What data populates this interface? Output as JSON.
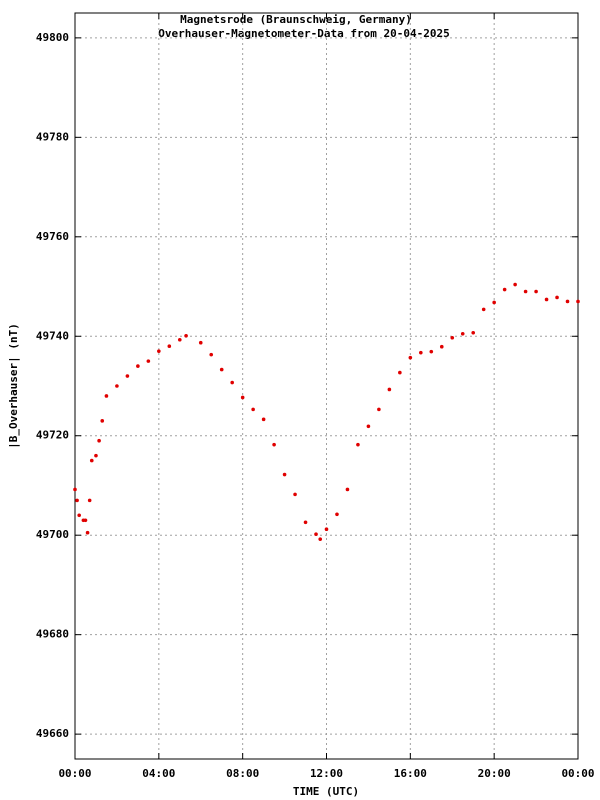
{
  "chart_data": {
    "type": "scatter",
    "title": "Magnetsrode (Braunschweig, Germany)",
    "subtitle": "Overhauser-Magnetometer-Data from 20-04-2025",
    "x_label": "TIME (UTC)",
    "y_label": "|B_Overhauser| (nT)",
    "xlim": [
      0,
      24
    ],
    "xticks": [
      {
        "value": 0,
        "label": "00:00"
      },
      {
        "value": 4,
        "label": "04:00"
      },
      {
        "value": 8,
        "label": "08:00"
      },
      {
        "value": 12,
        "label": "12:00"
      },
      {
        "value": 16,
        "label": "16:00"
      },
      {
        "value": 20,
        "label": "20:00"
      },
      {
        "value": 24,
        "label": "00:00"
      }
    ],
    "ylim": [
      49655,
      49805
    ],
    "yticks": [
      49660,
      49680,
      49700,
      49720,
      49740,
      49760,
      49780,
      49800
    ],
    "grid": true,
    "series": [
      {
        "color": "#e00000",
        "x": [
          0.0,
          0.1,
          0.2,
          0.4,
          0.5,
          0.6,
          0.7,
          0.8,
          1.0,
          1.15,
          1.3,
          1.5,
          2,
          2.5,
          3,
          3.5,
          4,
          4.5,
          5,
          5.3,
          6,
          6.5,
          7,
          7.5,
          8,
          8.5,
          9,
          9.5,
          10,
          10.5,
          11,
          11.5,
          11.7,
          12,
          12.5,
          13,
          13.5,
          14,
          14.5,
          15,
          15.5,
          16,
          16.5,
          17,
          17.5,
          18,
          18.5,
          19,
          19.5,
          20,
          20.5,
          21,
          21.5,
          22,
          22.5,
          23,
          23.5,
          24
        ],
        "values": [
          49709.2,
          49707,
          49704,
          49703,
          49703,
          49700.5,
          49707,
          49715,
          49716,
          49719,
          49723,
          49728,
          49730,
          49732,
          49734,
          49735,
          49737,
          49738,
          49739.3,
          49740.1,
          49738.7,
          49736.3,
          49733.3,
          49730.7,
          49727.7,
          49725.3,
          49723.3,
          49718.2,
          49712.2,
          49708.2,
          49702.6,
          49700.2,
          49699.2,
          49701.2,
          49704.2,
          49709.2,
          49718.2,
          49721.9,
          49725.3,
          49729.3,
          49732.7,
          49735.7,
          49736.7,
          49736.9,
          49737.9,
          49739.7,
          49740.5,
          49740.7,
          49745.4,
          49746.8,
          49749.4,
          49750.4,
          49749,
          49749,
          49747.4,
          49747.8,
          49747,
          49747
        ]
      }
    ]
  }
}
